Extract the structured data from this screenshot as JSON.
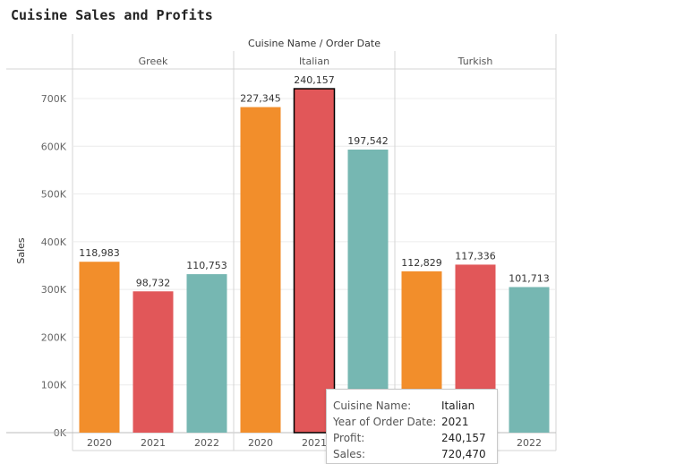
{
  "title": "Cuisine Sales and Profits",
  "colors": {
    "2020": "#f28e2b",
    "2021": "#e15759",
    "2022": "#76b7b2"
  },
  "tooltip": {
    "label_cuisine": "Cuisine Name:",
    "value_cuisine": "Italian",
    "label_year": "Year of Order Date:",
    "value_year": "2021",
    "label_profit": "Profit:",
    "value_profit": "240,157",
    "label_sales": "Sales:",
    "value_sales": "720,470"
  },
  "chart_data": {
    "type": "bar",
    "header_title": "Cuisine Name / Order Date",
    "ylabel": "Sales",
    "ylim": [
      0,
      760000
    ],
    "yticks": [
      0,
      100000,
      200000,
      300000,
      400000,
      500000,
      600000,
      700000
    ],
    "ytick_labels": [
      "0K",
      "100K",
      "200K",
      "300K",
      "400K",
      "500K",
      "600K",
      "700K"
    ],
    "groups": [
      {
        "name": "Greek",
        "bars": [
          {
            "year": "2020",
            "sales": 358000,
            "label": "118,983"
          },
          {
            "year": "2021",
            "sales": 296000,
            "label": "98,732"
          },
          {
            "year": "2022",
            "sales": 332000,
            "label": "110,753"
          }
        ]
      },
      {
        "name": "Italian",
        "bars": [
          {
            "year": "2020",
            "sales": 682000,
            "label": "227,345"
          },
          {
            "year": "2021",
            "sales": 720470,
            "label": "240,157",
            "selected": true
          },
          {
            "year": "2022",
            "sales": 593000,
            "label": "197,542"
          }
        ]
      },
      {
        "name": "Turkish",
        "bars": [
          {
            "year": "2020",
            "sales": 338000,
            "label": "112,829"
          },
          {
            "year": "2021",
            "sales": 352000,
            "label": "117,336"
          },
          {
            "year": "2022",
            "sales": 305000,
            "label": "101,713"
          }
        ]
      }
    ]
  }
}
